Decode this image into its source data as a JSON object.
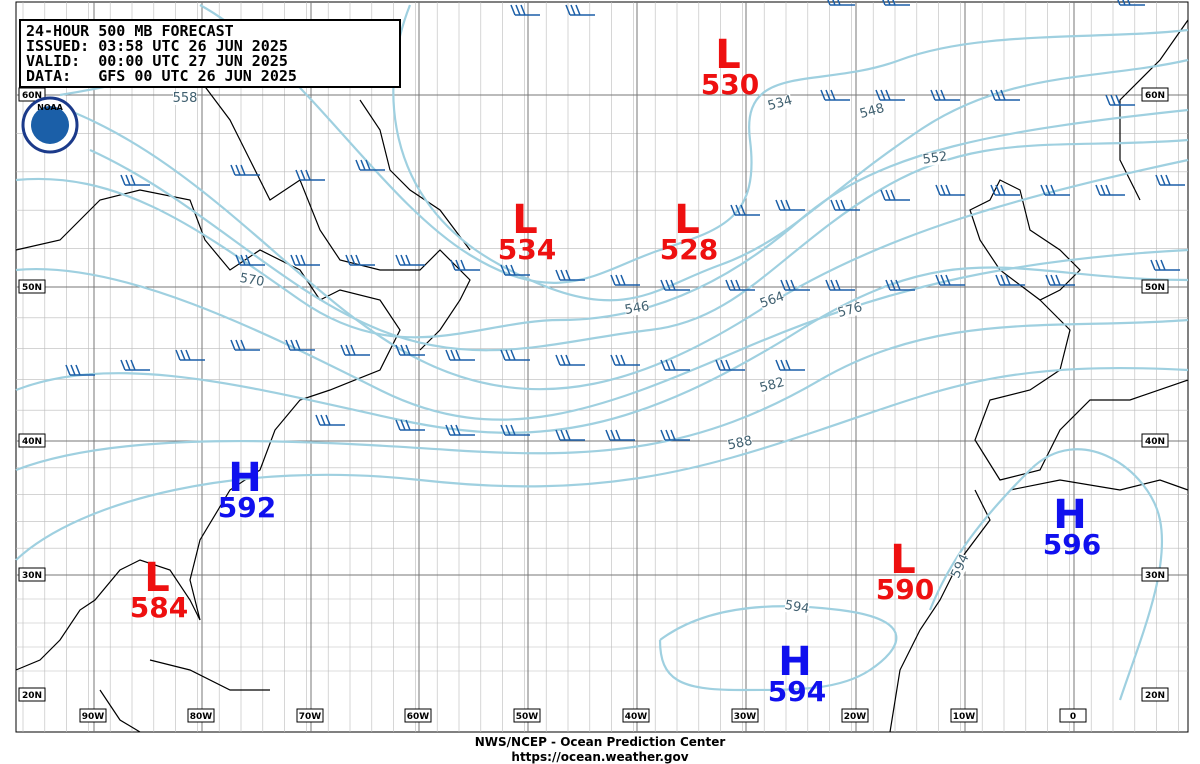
{
  "header": {
    "lines": [
      "24-HOUR 500 MB FORECAST",
      "ISSUED: 03:58 UTC 26 JUN 2025",
      "VALID:  00:00 UTC 27 JUN 2025",
      "DATA:   GFS 00 UTC 26 JUN 2025"
    ]
  },
  "logo": "NOAA",
  "pressure_centers": [
    {
      "type": "L",
      "value": 530
    },
    {
      "type": "L",
      "value": 534
    },
    {
      "type": "L",
      "value": 528
    },
    {
      "type": "H",
      "value": 592
    },
    {
      "type": "L",
      "value": 584
    },
    {
      "type": "L",
      "value": 590
    },
    {
      "type": "H",
      "value": 596
    },
    {
      "type": "H",
      "value": 594
    }
  ],
  "contour_labels": [
    558,
    534,
    548,
    552,
    570,
    546,
    564,
    576,
    582,
    588,
    594,
    594
  ],
  "latitude_labels": [
    "60N",
    "50N",
    "40N",
    "30N",
    "20N"
  ],
  "longitude_labels": [
    "90W",
    "80W",
    "70W",
    "60W",
    "50W",
    "40W",
    "30W",
    "20W",
    "10W",
    "0"
  ],
  "footer": {
    "agency": "NWS/NCEP - Ocean Prediction Center",
    "url": "https://ocean.weather.gov"
  }
}
